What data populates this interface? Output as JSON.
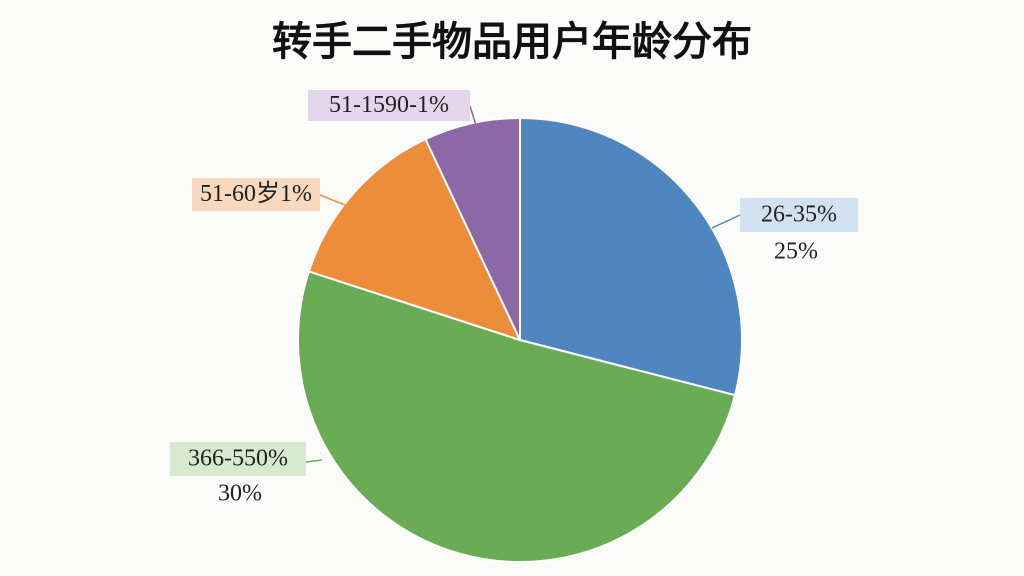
{
  "chart_data": {
    "type": "pie",
    "title": "转手二手物品用户年龄分布",
    "categories": [
      "26-35%",
      "366-550%",
      "51-60岁1%",
      "51-1590-1%"
    ],
    "sublabels": [
      "25%",
      "30%",
      null,
      null
    ],
    "values": [
      29,
      51,
      13,
      7
    ],
    "colors": [
      "#4f86c0",
      "#6aab56",
      "#ec8d3b",
      "#8e67a6"
    ],
    "label_backgrounds": [
      "#d3e2f1",
      "#d7ead0",
      "#f8d9bf",
      "#e3d5ec"
    ]
  }
}
